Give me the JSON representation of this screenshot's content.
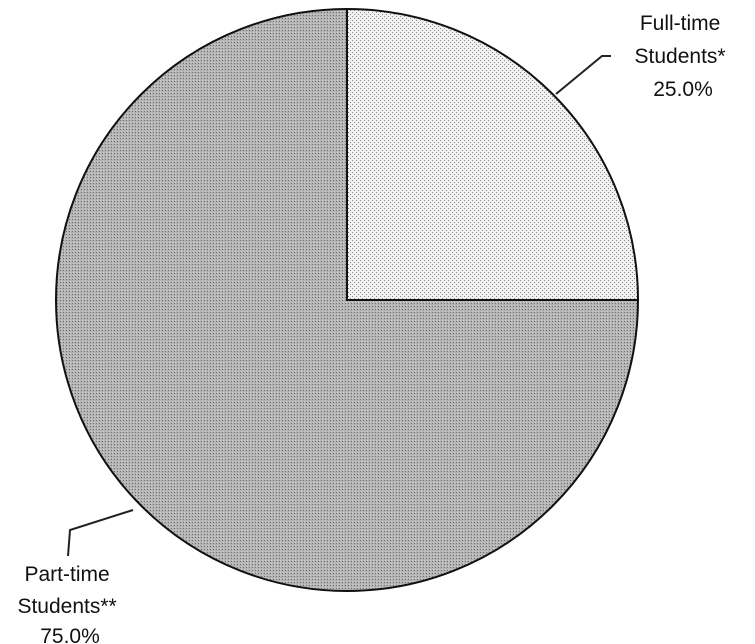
{
  "chart_data": {
    "type": "pie",
    "title": "",
    "slices": [
      {
        "label_lines": [
          "Full-time",
          "Students*"
        ],
        "value": 25.0,
        "value_label": "25.0%",
        "color": "#e6e6e6"
      },
      {
        "label_lines": [
          "Part-time",
          "Students**"
        ],
        "value": 75.0,
        "value_label": "75.0%",
        "color": "#a9a9a9"
      }
    ],
    "start_angle": "12 o'clock",
    "direction": "clockwise",
    "legend": "none"
  }
}
